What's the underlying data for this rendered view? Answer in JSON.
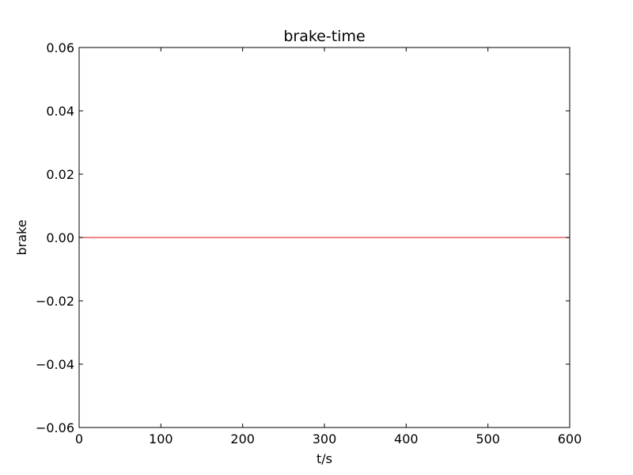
{
  "chart_data": {
    "type": "line",
    "title": "brake-time",
    "xlabel": "t/s",
    "ylabel": "brake",
    "xlim": [
      0,
      600
    ],
    "ylim": [
      -0.06,
      0.06
    ],
    "x_ticks": [
      0,
      100,
      200,
      300,
      400,
      500,
      600
    ],
    "y_ticks": [
      0.06,
      0.04,
      0.02,
      0.0,
      -0.02,
      -0.04,
      -0.06
    ],
    "x_tick_labels": [
      "0",
      "100",
      "200",
      "300",
      "400",
      "500",
      "600"
    ],
    "y_tick_labels": [
      "0.06",
      "0.04",
      "0.02",
      "0.00",
      "−0.02",
      "−0.04",
      "−0.06"
    ],
    "grid": false,
    "series": [
      {
        "name": "brake",
        "color": "#e8413c",
        "x": [
          0,
          600
        ],
        "y": [
          0,
          0
        ]
      }
    ]
  }
}
